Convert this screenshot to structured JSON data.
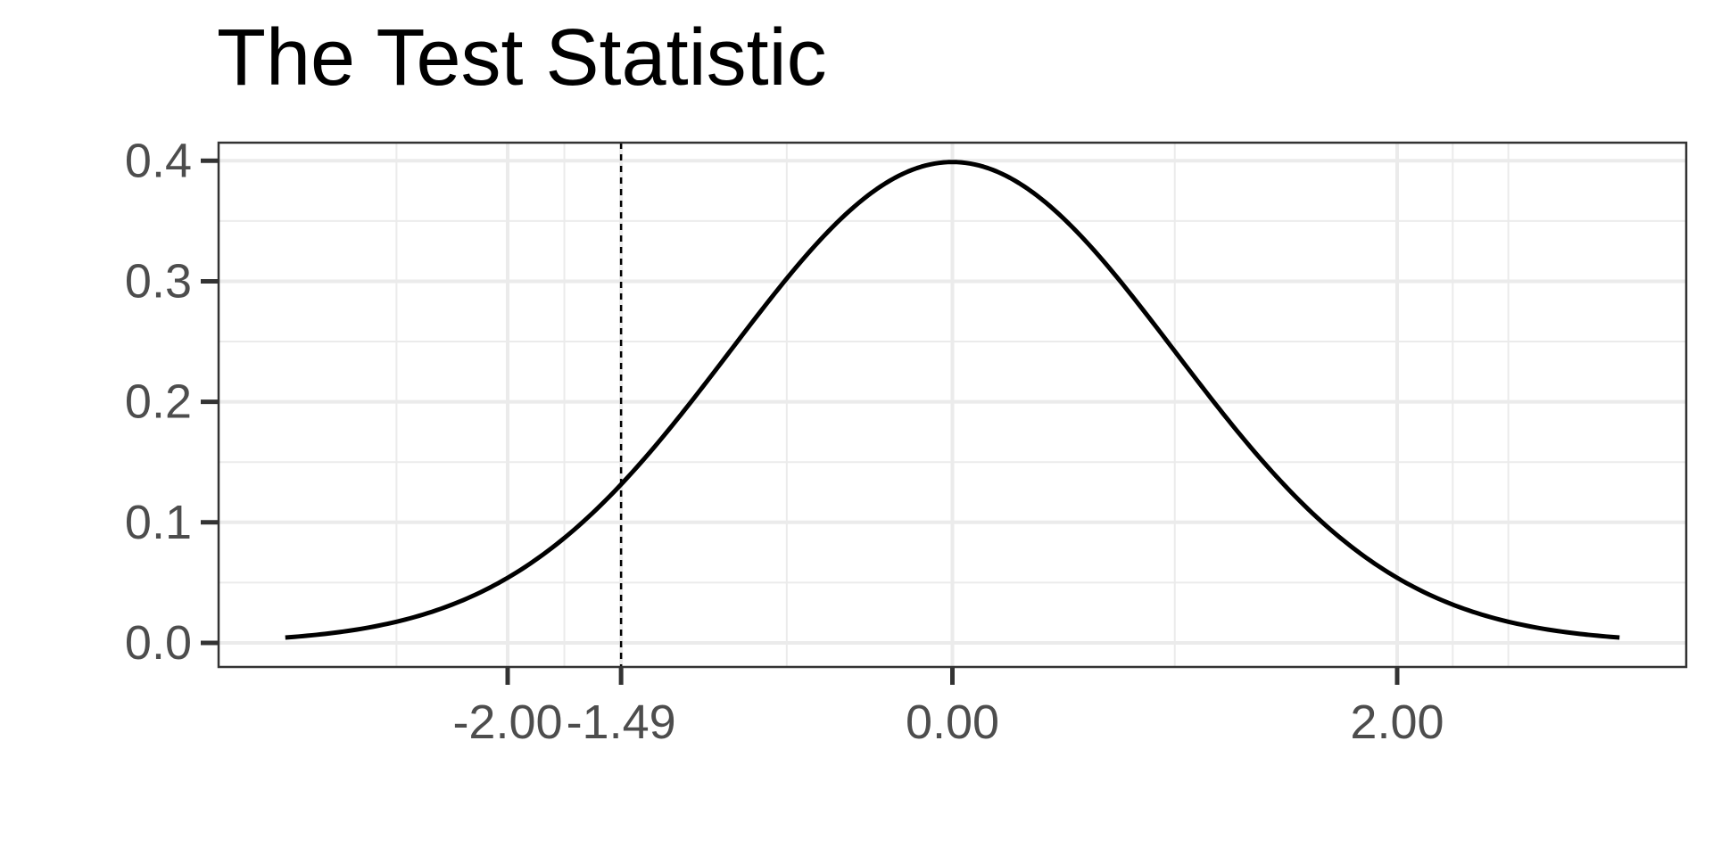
{
  "chart_data": {
    "type": "line",
    "title": "The Test Statistic",
    "xlabel": "",
    "ylabel": "",
    "xlim": [
      -3.3,
      3.3
    ],
    "ylim": [
      -0.02,
      0.415
    ],
    "x_ticks": [
      -2.0,
      -1.49,
      0.0,
      2.0
    ],
    "x_tick_labels": [
      "-2.00",
      "-1.49",
      "0.00",
      "2.00"
    ],
    "x_minor_gridlines": [
      -2.5,
      -1.745,
      -0.745,
      1.0,
      2.25,
      2.5
    ],
    "y_ticks": [
      0.0,
      0.1,
      0.2,
      0.3,
      0.4
    ],
    "y_tick_labels": [
      "0.0",
      "0.1",
      "0.2",
      "0.3",
      "0.4"
    ],
    "y_minor_gridlines": [
      0.05,
      0.15,
      0.25,
      0.35
    ],
    "grid": true,
    "series": [
      {
        "curve": "standard normal density",
        "x_range": [
          -3.0,
          3.0
        ],
        "color": "#000000"
      }
    ],
    "reference_lines": [
      {
        "orientation": "vertical",
        "x": -1.49,
        "style": "dashed",
        "color": "#000000"
      }
    ]
  }
}
